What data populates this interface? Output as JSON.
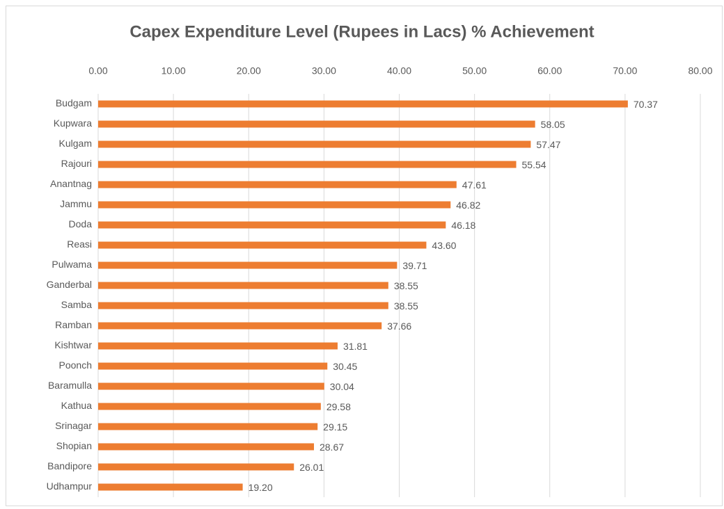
{
  "chart_data": {
    "type": "bar",
    "orientation": "horizontal",
    "title": "Capex Expenditure Level (Rupees in Lacs) % Achievement",
    "categories": [
      "Budgam",
      "Kupwara",
      "Kulgam",
      "Rajouri",
      "Anantnag",
      "Jammu",
      "Doda",
      "Reasi",
      "Pulwama",
      "Ganderbal",
      "Samba",
      "Ramban",
      "Kishtwar",
      "Poonch",
      "Baramulla",
      "Kathua",
      "Srinagar",
      "Shopian",
      "Bandipore",
      "Udhampur"
    ],
    "values": [
      70.37,
      58.05,
      57.47,
      55.54,
      47.61,
      46.82,
      46.18,
      43.6,
      39.71,
      38.55,
      38.55,
      37.66,
      31.81,
      30.45,
      30.04,
      29.58,
      29.15,
      28.67,
      26.01,
      19.2
    ],
    "value_labels": [
      "70.37",
      "58.05",
      "57.47",
      "55.54",
      "47.61",
      "46.82",
      "46.18",
      "43.60",
      "39.71",
      "38.55",
      "38.55",
      "37.66",
      "31.81",
      "30.45",
      "30.04",
      "29.58",
      "29.15",
      "28.67",
      "26.01",
      "19.20"
    ],
    "color": "#ed7d31",
    "xlim": [
      0,
      80
    ],
    "xticks": [
      {
        "value": 0,
        "label": "0.00"
      },
      {
        "value": 10,
        "label": "10.00"
      },
      {
        "value": 20,
        "label": "20.00"
      },
      {
        "value": 30,
        "label": "30.00"
      },
      {
        "value": 40,
        "label": "40.00"
      },
      {
        "value": 50,
        "label": "50.00"
      },
      {
        "value": 60,
        "label": "60.00"
      },
      {
        "value": 70,
        "label": "70.00"
      },
      {
        "value": 80,
        "label": "80.00"
      }
    ],
    "grid": true
  }
}
